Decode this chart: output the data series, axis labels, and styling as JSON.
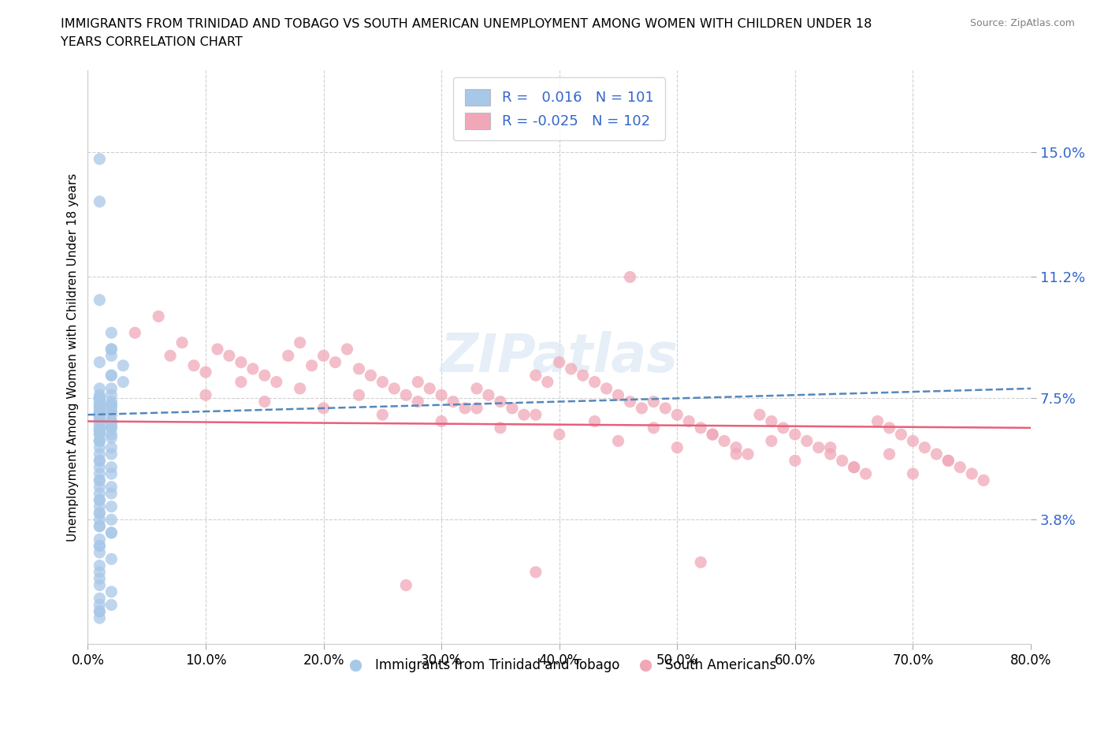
{
  "title_line1": "IMMIGRANTS FROM TRINIDAD AND TOBAGO VS SOUTH AMERICAN UNEMPLOYMENT AMONG WOMEN WITH CHILDREN UNDER 18",
  "title_line2": "YEARS CORRELATION CHART",
  "source": "Source: ZipAtlas.com",
  "ylabel": "Unemployment Among Women with Children Under 18 years",
  "xlim": [
    0.0,
    0.8
  ],
  "ylim": [
    0.0,
    0.175
  ],
  "yticks": [
    0.038,
    0.075,
    0.112,
    0.15
  ],
  "ytick_labels": [
    "3.8%",
    "7.5%",
    "11.2%",
    "15.0%"
  ],
  "xticks": [
    0.0,
    0.1,
    0.2,
    0.3,
    0.4,
    0.5,
    0.6,
    0.7,
    0.8
  ],
  "xtick_labels": [
    "0.0%",
    "10.0%",
    "20.0%",
    "30.0%",
    "40.0%",
    "50.0%",
    "60.0%",
    "70.0%",
    "80.0%"
  ],
  "blue_color": "#a8c8e8",
  "pink_color": "#f0a8b8",
  "blue_line_color": "#5588bb",
  "pink_line_color": "#e8607a",
  "blue_R": 0.016,
  "blue_N": 101,
  "pink_R": -0.025,
  "pink_N": 102,
  "legend_R_color": "#3366cc",
  "watermark": "ZIPatlas",
  "blue_scatter_x": [
    0.01,
    0.01,
    0.02,
    0.02,
    0.01,
    0.02,
    0.01,
    0.02,
    0.03,
    0.01,
    0.01,
    0.01,
    0.02,
    0.01,
    0.02,
    0.01,
    0.01,
    0.02,
    0.01,
    0.02,
    0.01,
    0.02,
    0.01,
    0.01,
    0.02,
    0.01,
    0.02,
    0.01,
    0.02,
    0.01,
    0.01,
    0.02,
    0.01,
    0.02,
    0.01,
    0.01,
    0.02,
    0.01,
    0.02,
    0.01,
    0.01,
    0.02,
    0.01,
    0.01,
    0.02,
    0.01,
    0.02,
    0.01,
    0.01,
    0.01,
    0.01,
    0.02,
    0.01,
    0.01,
    0.02,
    0.01,
    0.01,
    0.02,
    0.01,
    0.01,
    0.01,
    0.02,
    0.01,
    0.02,
    0.01,
    0.01,
    0.02,
    0.01,
    0.01,
    0.02,
    0.01,
    0.01,
    0.02,
    0.01,
    0.01,
    0.02,
    0.01,
    0.01,
    0.02,
    0.01,
    0.01,
    0.01,
    0.02,
    0.01,
    0.01,
    0.01,
    0.02,
    0.01,
    0.01,
    0.01,
    0.01,
    0.02,
    0.01,
    0.01,
    0.01,
    0.01,
    0.02,
    0.01,
    0.03,
    0.02,
    0.01
  ],
  "blue_scatter_y": [
    0.148,
    0.135,
    0.09,
    0.095,
    0.105,
    0.088,
    0.086,
    0.082,
    0.08,
    0.078,
    0.076,
    0.075,
    0.09,
    0.074,
    0.073,
    0.072,
    0.071,
    0.082,
    0.07,
    0.078,
    0.075,
    0.073,
    0.071,
    0.069,
    0.074,
    0.072,
    0.076,
    0.073,
    0.07,
    0.068,
    0.067,
    0.066,
    0.065,
    0.064,
    0.075,
    0.073,
    0.071,
    0.069,
    0.067,
    0.066,
    0.065,
    0.063,
    0.062,
    0.075,
    0.072,
    0.07,
    0.068,
    0.066,
    0.064,
    0.062,
    0.06,
    0.058,
    0.056,
    0.054,
    0.052,
    0.05,
    0.048,
    0.046,
    0.044,
    0.042,
    0.04,
    0.038,
    0.036,
    0.034,
    0.07,
    0.068,
    0.066,
    0.064,
    0.062,
    0.06,
    0.058,
    0.056,
    0.054,
    0.052,
    0.05,
    0.048,
    0.046,
    0.044,
    0.042,
    0.04,
    0.038,
    0.036,
    0.034,
    0.032,
    0.03,
    0.028,
    0.026,
    0.024,
    0.022,
    0.02,
    0.018,
    0.016,
    0.014,
    0.012,
    0.01,
    0.008,
    0.012,
    0.01,
    0.085,
    0.068,
    0.03
  ],
  "pink_scatter_x": [
    0.04,
    0.06,
    0.07,
    0.08,
    0.09,
    0.1,
    0.11,
    0.12,
    0.13,
    0.14,
    0.15,
    0.16,
    0.17,
    0.18,
    0.19,
    0.2,
    0.21,
    0.22,
    0.23,
    0.24,
    0.25,
    0.26,
    0.27,
    0.28,
    0.29,
    0.3,
    0.31,
    0.32,
    0.33,
    0.34,
    0.35,
    0.36,
    0.37,
    0.38,
    0.39,
    0.4,
    0.41,
    0.42,
    0.43,
    0.44,
    0.45,
    0.46,
    0.47,
    0.48,
    0.49,
    0.5,
    0.51,
    0.52,
    0.53,
    0.54,
    0.55,
    0.56,
    0.57,
    0.58,
    0.59,
    0.6,
    0.61,
    0.62,
    0.63,
    0.64,
    0.65,
    0.66,
    0.67,
    0.68,
    0.69,
    0.7,
    0.71,
    0.72,
    0.73,
    0.74,
    0.75,
    0.76,
    0.1,
    0.15,
    0.2,
    0.25,
    0.3,
    0.35,
    0.4,
    0.45,
    0.5,
    0.55,
    0.6,
    0.65,
    0.7,
    0.13,
    0.18,
    0.23,
    0.28,
    0.33,
    0.38,
    0.43,
    0.48,
    0.53,
    0.58,
    0.63,
    0.68,
    0.73,
    0.46,
    0.52,
    0.38,
    0.27
  ],
  "pink_scatter_y": [
    0.095,
    0.1,
    0.088,
    0.092,
    0.085,
    0.083,
    0.09,
    0.088,
    0.086,
    0.084,
    0.082,
    0.08,
    0.088,
    0.092,
    0.085,
    0.088,
    0.086,
    0.09,
    0.084,
    0.082,
    0.08,
    0.078,
    0.076,
    0.08,
    0.078,
    0.076,
    0.074,
    0.072,
    0.078,
    0.076,
    0.074,
    0.072,
    0.07,
    0.082,
    0.08,
    0.086,
    0.084,
    0.082,
    0.08,
    0.078,
    0.076,
    0.074,
    0.072,
    0.074,
    0.072,
    0.07,
    0.068,
    0.066,
    0.064,
    0.062,
    0.06,
    0.058,
    0.07,
    0.068,
    0.066,
    0.064,
    0.062,
    0.06,
    0.058,
    0.056,
    0.054,
    0.052,
    0.068,
    0.066,
    0.064,
    0.062,
    0.06,
    0.058,
    0.056,
    0.054,
    0.052,
    0.05,
    0.076,
    0.074,
    0.072,
    0.07,
    0.068,
    0.066,
    0.064,
    0.062,
    0.06,
    0.058,
    0.056,
    0.054,
    0.052,
    0.08,
    0.078,
    0.076,
    0.074,
    0.072,
    0.07,
    0.068,
    0.066,
    0.064,
    0.062,
    0.06,
    0.058,
    0.056,
    0.112,
    0.025,
    0.022,
    0.018
  ]
}
